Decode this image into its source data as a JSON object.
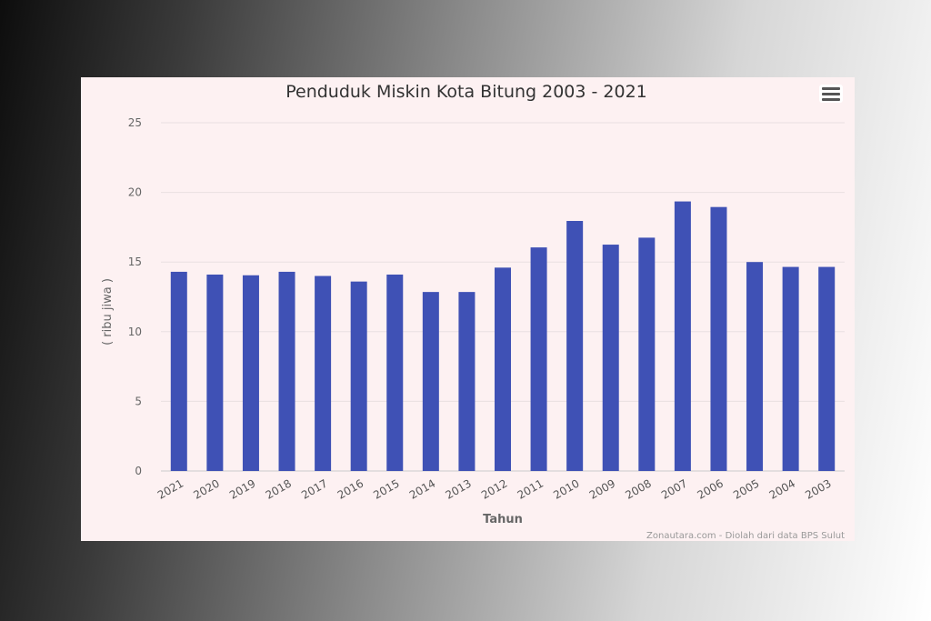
{
  "chart_data": {
    "type": "bar",
    "title": "Penduduk Miskin Kota Bitung 2003 - 2021",
    "xlabel": "Tahun",
    "ylabel": "( ribu jiwa )",
    "credits": "Zonautara.com - Diolah dari data BPS Sulut",
    "ylim": [
      0,
      25
    ],
    "yticks": [
      0,
      5,
      10,
      15,
      20,
      25
    ],
    "grid": true,
    "legend": "none",
    "categories": [
      "2021",
      "2020",
      "2019",
      "2018",
      "2017",
      "2016",
      "2015",
      "2014",
      "2013",
      "2012",
      "2011",
      "2010",
      "2009",
      "2008",
      "2007",
      "2006",
      "2005",
      "2004",
      "2003"
    ],
    "values": [
      14.3,
      14.1,
      14.05,
      14.3,
      14.0,
      13.6,
      14.1,
      12.85,
      12.85,
      14.6,
      16.05,
      17.95,
      16.25,
      16.75,
      19.35,
      18.95,
      15.0,
      14.65,
      14.65
    ],
    "bar_color": "#3f51b5"
  },
  "menu": {
    "icon": "hamburger-menu-icon"
  }
}
